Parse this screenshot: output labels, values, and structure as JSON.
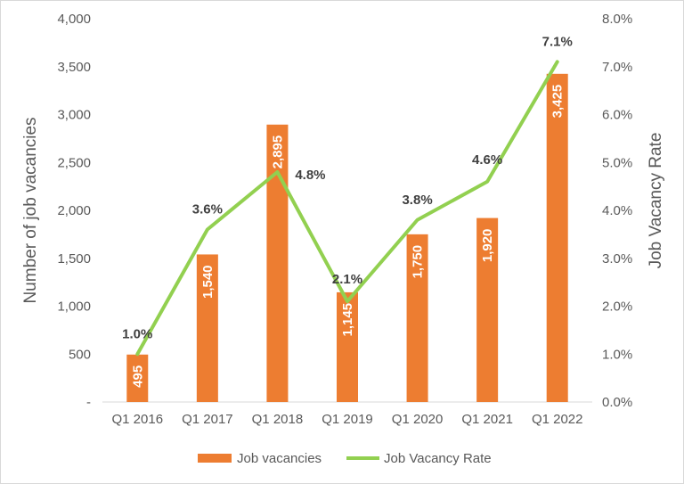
{
  "chart_data": {
    "type": "bar",
    "categories": [
      "Q1 2016",
      "Q1 2017",
      "Q1 2018",
      "Q1 2019",
      "Q1 2020",
      "Q1 2021",
      "Q1 2022"
    ],
    "series": [
      {
        "name": "Job vacancies",
        "type": "bar",
        "axis": "left",
        "values": [
          495,
          1540,
          2895,
          1145,
          1750,
          1920,
          3425
        ],
        "data_labels": [
          "495",
          "1,540",
          "2,895",
          "1,145",
          "1,750",
          "1,920",
          "3,425"
        ],
        "color": "#ED7D31"
      },
      {
        "name": "Job Vacancy Rate",
        "type": "line",
        "axis": "right",
        "values": [
          1.0,
          3.6,
          4.8,
          2.1,
          3.8,
          4.6,
          7.1
        ],
        "data_labels": [
          "1.0%",
          "3.6%",
          "4.8%",
          "2.1%",
          "3.8%",
          "4.6%",
          "7.1%"
        ],
        "color": "#92D050"
      }
    ],
    "ylabel": "Number of job vacancies",
    "y2label": "Job Vacancy Rate",
    "ylim": [
      0,
      4000
    ],
    "y2lim": [
      0,
      8
    ],
    "y_ticks": [
      0,
      500,
      1000,
      1500,
      2000,
      2500,
      3000,
      3500,
      4000
    ],
    "y_tick_labels": [
      "-",
      "500",
      "1,000",
      "1,500",
      "2,000",
      "2,500",
      "3,000",
      "3,500",
      "4,000"
    ],
    "y2_ticks": [
      0,
      1,
      2,
      3,
      4,
      5,
      6,
      7,
      8
    ],
    "y2_tick_labels": [
      "0.0%",
      "1.0%",
      "2.0%",
      "3.0%",
      "4.0%",
      "5.0%",
      "6.0%",
      "7.0%",
      "8.0%"
    ],
    "grid": false,
    "legend": "bottom"
  }
}
